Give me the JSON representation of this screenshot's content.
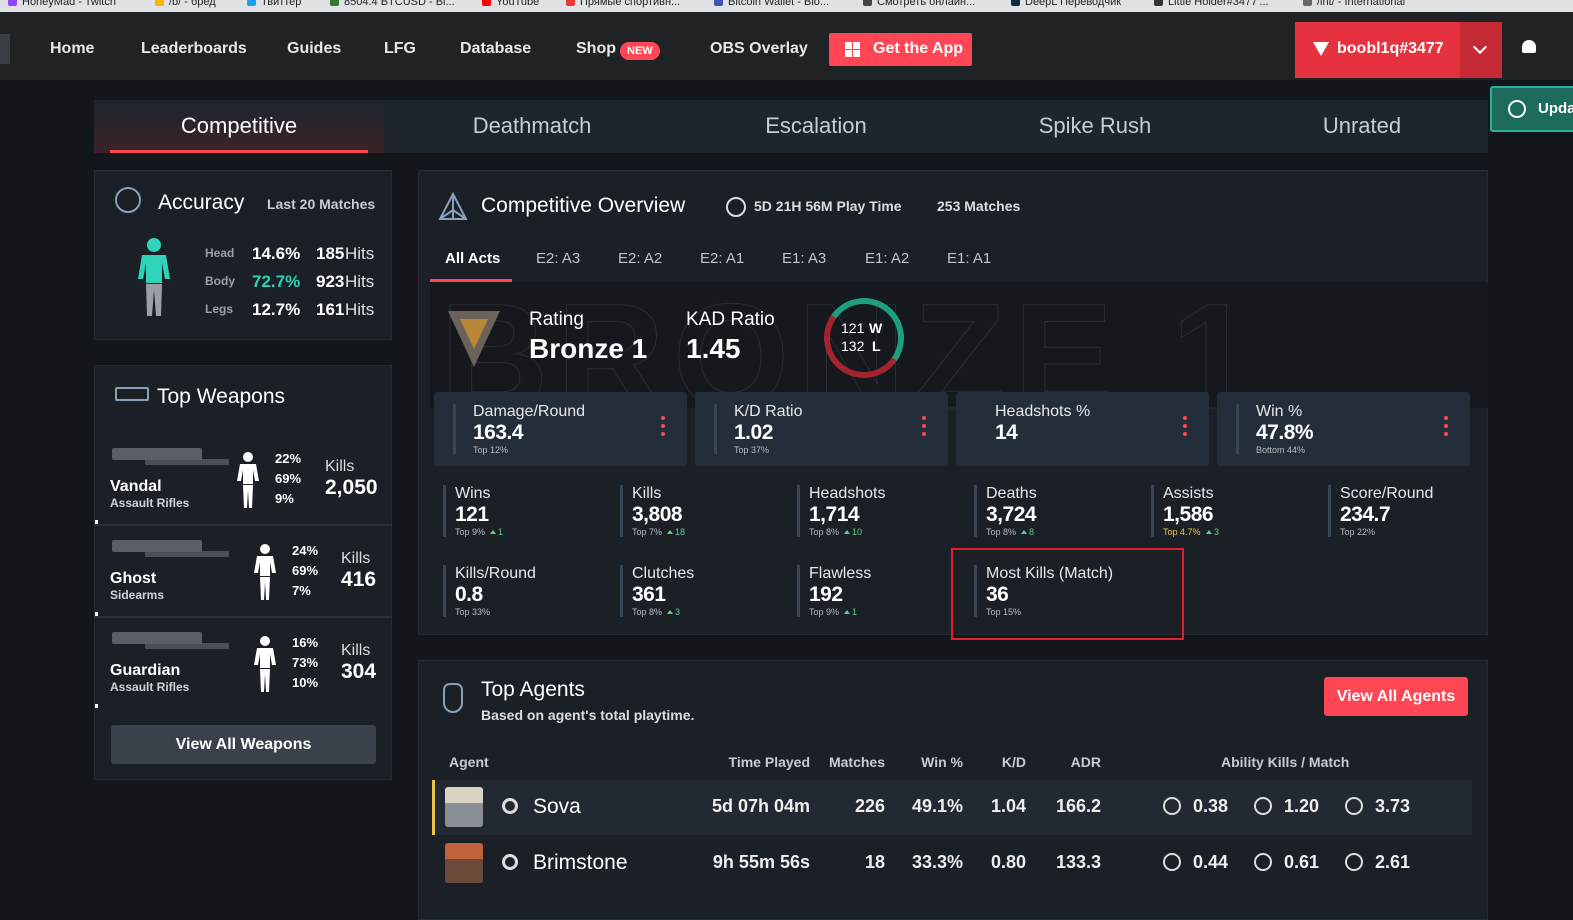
{
  "bookmarks": [
    "HoneyMad - Twitch",
    "/b/ - бред",
    "Твиттер",
    "8504.4 BTCUSD - Bi...",
    "YouTube",
    "Прямые спортивн...",
    "Bitcoin Wallet - Blo...",
    "Смотреть онлайн...",
    "DeepL Переводчик",
    "Little Holder#3477'...",
    "/int/ - International"
  ],
  "nav": {
    "items": [
      "Home",
      "Leaderboards",
      "Guides",
      "LFG",
      "Database",
      "Shop",
      "OBS Overlay"
    ],
    "badge": "NEW",
    "app_button": "Get the App",
    "user": "boobl1q#3477",
    "update": "Upda"
  },
  "tabs": [
    "Competitive",
    "Deathmatch",
    "Escalation",
    "Spike Rush",
    "Unrated"
  ],
  "accuracy": {
    "title": "Accuracy",
    "subtitle": "Last 20 Matches",
    "rows": [
      {
        "part": "Head",
        "percent": "14.6%",
        "hits": "185",
        "hits_label": "Hits"
      },
      {
        "part": "Body",
        "percent": "72.7%",
        "hits": "923",
        "hits_label": "Hits"
      },
      {
        "part": "Legs",
        "percent": "12.7%",
        "hits": "161",
        "hits_label": "Hits"
      }
    ]
  },
  "weapons": {
    "title": "Top Weapons",
    "items": [
      {
        "name": "Vandal",
        "class": "Assault Rifles",
        "percents": [
          "22%",
          "69%",
          "9%"
        ],
        "kills_label": "Kills",
        "kills": "2,050"
      },
      {
        "name": "Ghost",
        "class": "Sidearms",
        "percents": [
          "24%",
          "69%",
          "7%"
        ],
        "kills_label": "Kills",
        "kills": "416"
      },
      {
        "name": "Guardian",
        "class": "Assault Rifles",
        "percents": [
          "16%",
          "73%",
          "10%"
        ],
        "kills_label": "Kills",
        "kills": "304"
      }
    ],
    "button": "View All Weapons"
  },
  "overview": {
    "title": "Competitive Overview",
    "playtime": "5D 21H 56M Play Time",
    "matches": "253 Matches",
    "acts": [
      "All Acts",
      "E2: A3",
      "E2: A2",
      "E2: A1",
      "E1: A3",
      "E1: A2",
      "E1: A1"
    ],
    "rating_label": "Rating",
    "rank": "Bronze 1",
    "kad_label": "KAD Ratio",
    "kad": "1.45",
    "wins": "121",
    "wins_label": "W",
    "losses": "132",
    "losses_label": "L",
    "main_stats": [
      {
        "label": "Damage/Round",
        "value": "163.4",
        "sub": "Top 12%"
      },
      {
        "label": "K/D Ratio",
        "value": "1.02",
        "sub": "Top 37%"
      },
      {
        "label": "Headshots %",
        "value": "14"
      },
      {
        "label": "Win %",
        "value": "47.8%",
        "sub": "Bottom 44%"
      }
    ],
    "stats": [
      {
        "label": "Wins",
        "value": "121",
        "sub": "Top 9%",
        "change": "1"
      },
      {
        "label": "Kills",
        "value": "3,808",
        "sub": "Top 7%",
        "change": "18"
      },
      {
        "label": "Headshots",
        "value": "1,714",
        "sub": "Top 8%",
        "change": "10"
      },
      {
        "label": "Deaths",
        "value": "3,724",
        "sub": "Top 8%",
        "change": "8"
      },
      {
        "label": "Assists",
        "value": "1,586",
        "sub": "Top 4.7%",
        "change": "3"
      },
      {
        "label": "Score/Round",
        "value": "234.7",
        "sub": "Top 22%"
      },
      {
        "label": "Kills/Round",
        "value": "0.8",
        "sub": "Top 33%"
      },
      {
        "label": "Clutches",
        "value": "361",
        "sub": "Top 8%",
        "change": "3"
      },
      {
        "label": "Flawless",
        "value": "192",
        "sub": "Top 9%",
        "change": "1"
      },
      {
        "label": "Most Kills (Match)",
        "value": "36",
        "sub": "Top 15%"
      }
    ]
  },
  "agents": {
    "title": "Top Agents",
    "subtitle": "Based on agent's total playtime.",
    "button": "View All Agents",
    "columns": [
      "Agent",
      "Time Played",
      "Matches",
      "Win %",
      "K/D",
      "ADR",
      "Ability Kills / Match"
    ],
    "rows": [
      {
        "agent": "Sova",
        "time": "5d 07h 04m",
        "matches": "226",
        "win": "49.1%",
        "kd": "1.04",
        "adr": "166.2",
        "abilities": [
          "0.38",
          "1.20",
          "3.73"
        ]
      },
      {
        "agent": "Brimstone",
        "time": "9h 55m 56s",
        "matches": "18",
        "win": "33.3%",
        "kd": "0.80",
        "adr": "133.3",
        "abilities": [
          "0.44",
          "0.61",
          "2.61"
        ]
      }
    ]
  }
}
